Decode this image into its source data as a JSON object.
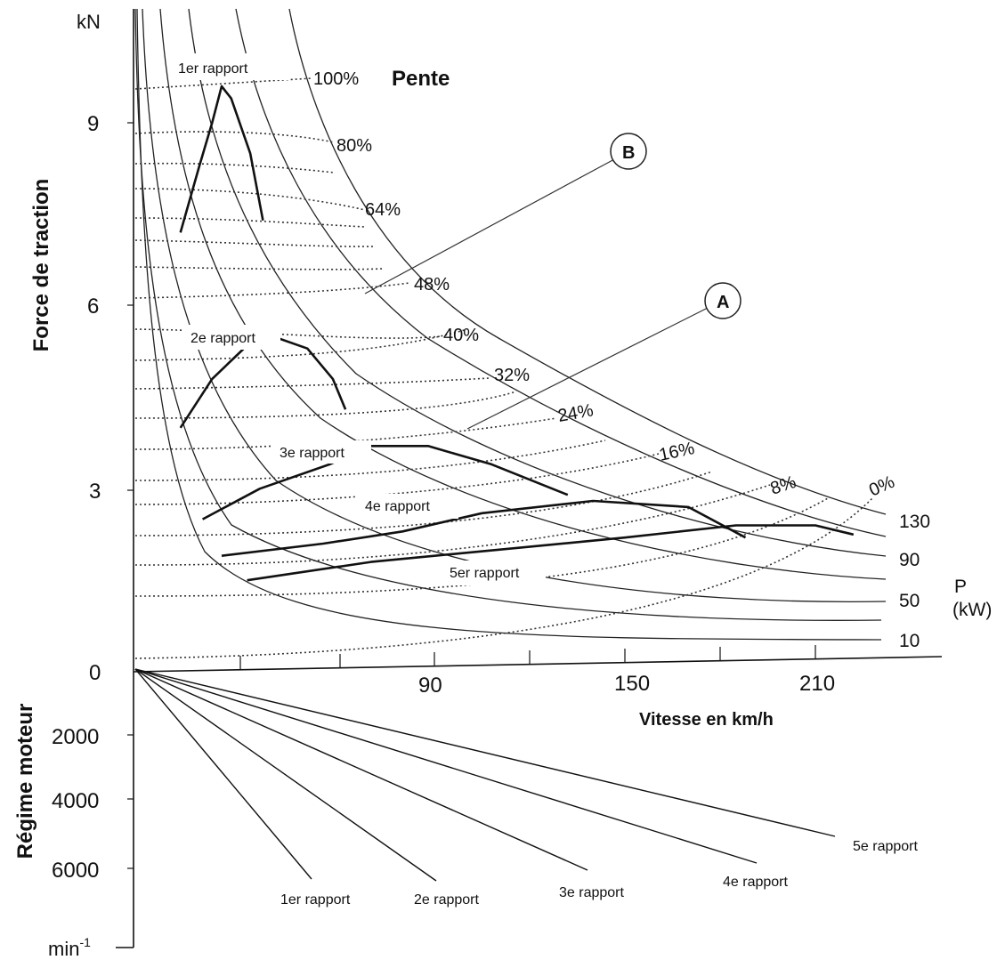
{
  "chart_data": {
    "type": "line",
    "title": "",
    "y_unit": "kN",
    "y_label": "Force de traction",
    "x_label": "Vitesse en km/h",
    "y_ticks": [
      "0",
      "3",
      "6",
      "9"
    ],
    "x_ticks": [
      "90",
      "150",
      "210"
    ],
    "grade_title": "Pente",
    "grades": [
      "100%",
      "80%",
      "64%",
      "48%",
      "40%",
      "32%",
      "24%",
      "16%",
      "8%",
      "0%"
    ],
    "power_unit": "P\n(kW)",
    "power_unit_line1": "P",
    "power_unit_line2": "(kW)",
    "power_values": [
      "130",
      "90",
      "50",
      "10"
    ],
    "gears": [
      {
        "name": "1er rapport",
        "speed_kmh": [
          10,
          16,
          20,
          23,
          26,
          32,
          36
        ],
        "force_kN": [
          7.2,
          8.3,
          9.0,
          9.6,
          9.4,
          8.5,
          7.4
        ]
      },
      {
        "name": "2e rapport",
        "speed_kmh": [
          10,
          20,
          28,
          34,
          39,
          50,
          58,
          62
        ],
        "force_kN": [
          4.0,
          4.8,
          5.2,
          5.5,
          5.5,
          5.3,
          4.8,
          4.3
        ]
      },
      {
        "name": "3e rapport",
        "speed_kmh": [
          17,
          35,
          57,
          70,
          88,
          108,
          132
        ],
        "force_kN": [
          2.5,
          3.0,
          3.4,
          3.7,
          3.7,
          3.4,
          2.9
        ]
      },
      {
        "name": "4e rapport",
        "speed_kmh": [
          23,
          55,
          80,
          105,
          140,
          170,
          188
        ],
        "force_kN": [
          1.9,
          2.1,
          2.3,
          2.6,
          2.8,
          2.7,
          2.2
        ]
      },
      {
        "name": "5er rapport",
        "speed_kmh": [
          31,
          70,
          110,
          150,
          185,
          210,
          222
        ],
        "force_kN": [
          1.5,
          1.8,
          2.0,
          2.2,
          2.4,
          2.4,
          2.25
        ]
      }
    ],
    "markers": [
      "A",
      "B"
    ],
    "rpm_axis": {
      "label": "Régime moteur",
      "unit": "min",
      "unit_exponent": "-1",
      "ticks": [
        "2000",
        "4000",
        "6000"
      ],
      "gear_lines": [
        "1er rapport",
        "2e rapport",
        "3e rapport",
        "4e rapport",
        "5e rapport"
      ]
    }
  }
}
